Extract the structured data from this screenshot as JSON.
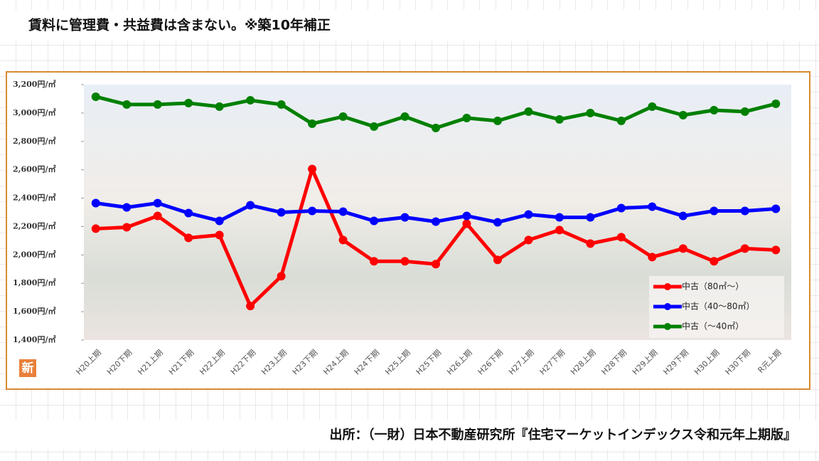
{
  "note_top": "賃料に管理費・共益費は含まない。※築10年補正",
  "source": "出所：（一財）日本不動産研究所『住宅マーケットインデックス令和元年上期版』",
  "badge": "新",
  "chart_data": {
    "type": "line",
    "categories": [
      "H20上期",
      "H20下期",
      "H21上期",
      "H21下期",
      "H22上期",
      "H22下期",
      "H23上期",
      "H23下期",
      "H24上期",
      "H24下期",
      "H25上期",
      "H25下期",
      "H26上期",
      "H26下期",
      "H27上期",
      "H27下期",
      "H28上期",
      "H28下期",
      "H29上期",
      "H29下期",
      "H30上期",
      "H30下期",
      "R元上期"
    ],
    "series": [
      {
        "name": "中古（80㎡～）",
        "color": "#ff0000",
        "values": [
          2185,
          2195,
          2275,
          2120,
          2140,
          1640,
          1850,
          2605,
          2105,
          1955,
          1955,
          1935,
          2220,
          1965,
          2105,
          2175,
          2080,
          2125,
          1985,
          2045,
          1955,
          2045,
          2035
        ]
      },
      {
        "name": "中古（40～80㎡）",
        "color": "#0000ff",
        "values": [
          2365,
          2335,
          2365,
          2295,
          2240,
          2350,
          2300,
          2310,
          2305,
          2240,
          2265,
          2235,
          2275,
          2230,
          2285,
          2265,
          2265,
          2330,
          2340,
          2275,
          2310,
          2310,
          2325
        ]
      },
      {
        "name": "中古（～40㎡）",
        "color": "#008000",
        "values": [
          3115,
          3060,
          3060,
          3070,
          3045,
          3090,
          3060,
          2925,
          2975,
          2905,
          2975,
          2895,
          2965,
          2945,
          3010,
          2955,
          3000,
          2945,
          3045,
          2985,
          3020,
          3010,
          3065
        ]
      }
    ],
    "ylim": [
      1400,
      3200
    ],
    "yticks": [
      {
        "value": 1400,
        "label": "1,400円/㎡"
      },
      {
        "value": 1600,
        "label": "1,600円/㎡"
      },
      {
        "value": 1800,
        "label": "1,800円/㎡"
      },
      {
        "value": 2000,
        "label": "2,000円/㎡"
      },
      {
        "value": 2200,
        "label": "2,200円/㎡"
      },
      {
        "value": 2400,
        "label": "2,400円/㎡"
      },
      {
        "value": 2600,
        "label": "2,600円/㎡"
      },
      {
        "value": 2800,
        "label": "2,800円/㎡"
      },
      {
        "value": 3000,
        "label": "3,000円/㎡"
      },
      {
        "value": 3200,
        "label": "3,200円/㎡"
      }
    ],
    "legend": "lower right"
  }
}
